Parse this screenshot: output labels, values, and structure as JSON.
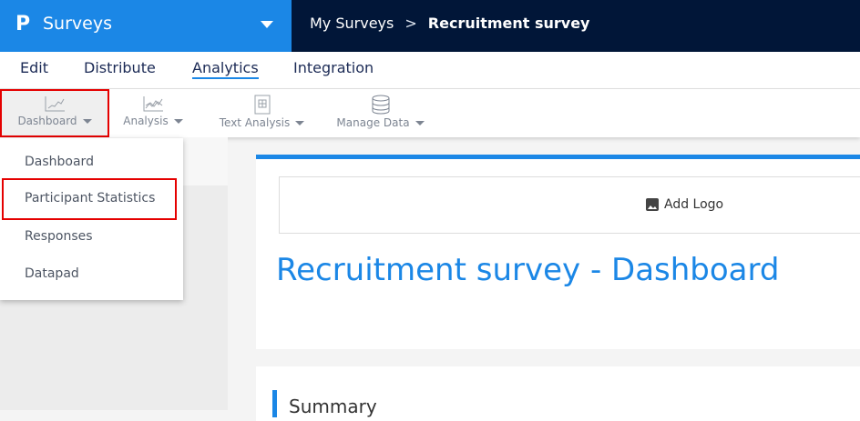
{
  "header": {
    "app_name": "Surveys",
    "breadcrumb": [
      "My Surveys",
      "Recruitment survey"
    ]
  },
  "tabs": [
    "Edit",
    "Distribute",
    "Analytics",
    "Integration"
  ],
  "active_tab": "Analytics",
  "toolbar": [
    {
      "label": "Dashboard",
      "icon": "line-chart-icon"
    },
    {
      "label": "Analysis",
      "icon": "multi-line-chart-icon"
    },
    {
      "label": "Text Analysis",
      "icon": "text-analysis-icon"
    },
    {
      "label": "Manage Data",
      "icon": "database-icon"
    }
  ],
  "menu": [
    "Dashboard",
    "Participant Statistics",
    "Responses",
    "Datapad"
  ],
  "main": {
    "add_logo": "Add Logo",
    "title": "Recruitment survey - Dashboard",
    "summary": "Summary"
  },
  "colors": {
    "brand": "#1b87e6",
    "navy": "#011638",
    "highlight": "#e50000"
  }
}
